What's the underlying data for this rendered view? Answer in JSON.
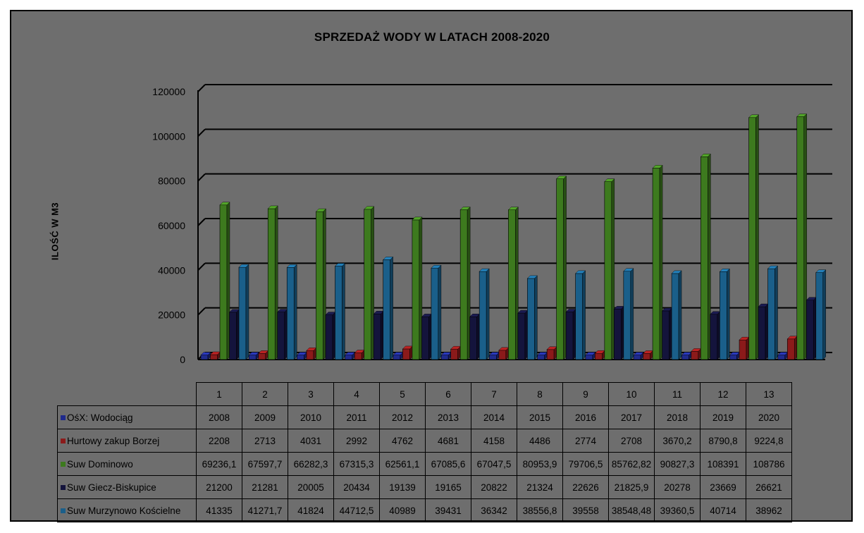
{
  "chart_data": {
    "type": "bar",
    "title": "SPRZEDAŻ WODY W LATACH 2008-2020",
    "ylabel": "ILOŚĆ W M3",
    "ylim": [
      0,
      120000
    ],
    "yticks": [
      "0",
      "20000",
      "40000",
      "60000",
      "80000",
      "100000",
      "120000"
    ],
    "categories": [
      "1",
      "2",
      "3",
      "4",
      "5",
      "6",
      "7",
      "8",
      "9",
      "10",
      "11",
      "12",
      "13"
    ],
    "grid": true,
    "legend": "table-below",
    "series": [
      {
        "name": "OśX: Wodociąg",
        "color": "#1f2a8c",
        "values": [
          2008,
          2009,
          2010,
          2011,
          2012,
          2013,
          2014,
          2015,
          2016,
          2017,
          2018,
          2019,
          2020
        ],
        "labels": [
          "2008",
          "2009",
          "2010",
          "2011",
          "2012",
          "2013",
          "2014",
          "2015",
          "2016",
          "2017",
          "2018",
          "2019",
          "2020"
        ]
      },
      {
        "name": "Hurtowy zakup Borzej",
        "color": "#8b1a1a",
        "values": [
          2208,
          2713,
          4031,
          2992,
          4762,
          4681,
          4158,
          4486,
          2774,
          2708,
          3670.2,
          8790.8,
          9224.8
        ],
        "labels": [
          "2208",
          "2713",
          "4031",
          "2992",
          "4762",
          "4681",
          "4158",
          "4486",
          "2774",
          "2708",
          "3670,2",
          "8790,8",
          "9224,8"
        ]
      },
      {
        "name": "Suw Dominowo",
        "color": "#3d7a1e",
        "values": [
          69236.1,
          67597.7,
          66282.3,
          67315.3,
          62561.1,
          67085.6,
          67047.5,
          80953.9,
          79706.5,
          85762.82,
          90827.3,
          108391,
          108786
        ],
        "labels": [
          "69236,1",
          "67597,7",
          "66282,3",
          "67315,3",
          "62561,1",
          "67085,6",
          "67047,5",
          "80953,9",
          "79706,5",
          "85762,82",
          "90827,3",
          "108391",
          "108786"
        ]
      },
      {
        "name": "Suw Giecz-Biskupice",
        "color": "#14143c",
        "values": [
          21200,
          21281,
          20005,
          20434,
          19139,
          19165,
          20822,
          21324,
          22626,
          21825.9,
          20278,
          23669,
          26621
        ],
        "labels": [
          "21200",
          "21281",
          "20005",
          "20434",
          "19139",
          "19165",
          "20822",
          "21324",
          "22626",
          "21825,9",
          "20278",
          "23669",
          "26621"
        ]
      },
      {
        "name": "Suw Murzynowo Kościelne",
        "color": "#1a5f8a",
        "values": [
          41335,
          41271.7,
          41824,
          44712.5,
          40989,
          39431,
          36342,
          38556.8,
          39558,
          38548.48,
          39360.5,
          40714,
          38962
        ],
        "labels": [
          "41335",
          "41271,7",
          "41824",
          "44712,5",
          "40989",
          "39431",
          "36342",
          "38556,8",
          "39558",
          "38548,48",
          "39360,5",
          "40714",
          "38962"
        ]
      }
    ]
  }
}
